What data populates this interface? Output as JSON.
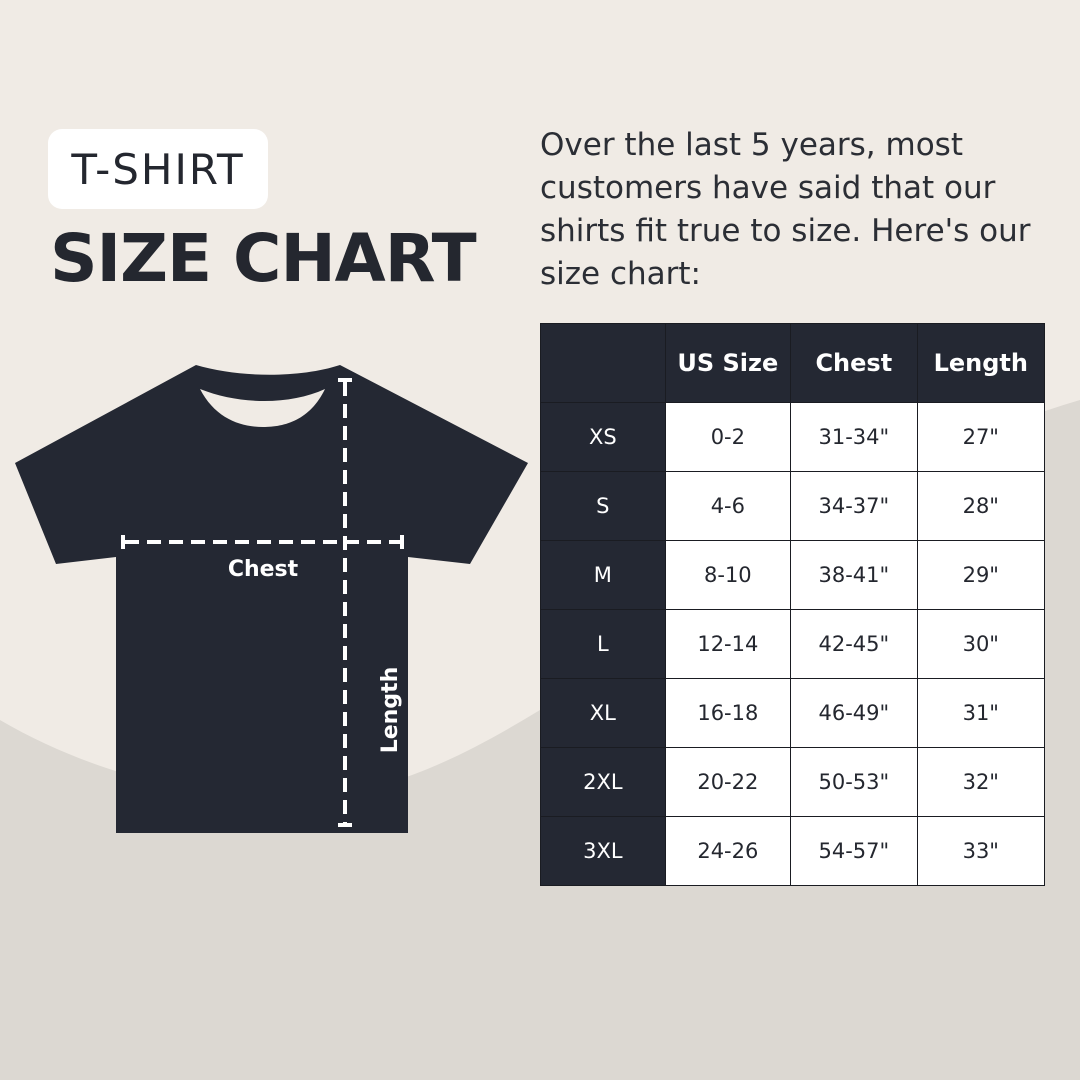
{
  "badge": "T-SHIRT",
  "title": "SIZE CHART",
  "intro": "Over the last 5 years, most customers have said that our shirts fit true to size. Here's our size chart:",
  "diagram": {
    "chest_label": "Chest",
    "length_label": "Length"
  },
  "colors": {
    "dark": "#242833",
    "background_light": "#f0ebe5",
    "background_dark": "#dcd8d2",
    "cell": "#ffffff"
  },
  "table": {
    "headers": [
      "",
      "US Size",
      "Chest",
      "Length"
    ],
    "rows": [
      [
        "XS",
        "0-2",
        "31-34\"",
        "27\""
      ],
      [
        "S",
        "4-6",
        "34-37\"",
        "28\""
      ],
      [
        "M",
        "8-10",
        "38-41\"",
        "29\""
      ],
      [
        "L",
        "12-14",
        "42-45\"",
        "30\""
      ],
      [
        "XL",
        "16-18",
        "46-49\"",
        "31\""
      ],
      [
        "2XL",
        "20-22",
        "50-53\"",
        "32\""
      ],
      [
        "3XL",
        "24-26",
        "54-57\"",
        "33\""
      ]
    ]
  }
}
